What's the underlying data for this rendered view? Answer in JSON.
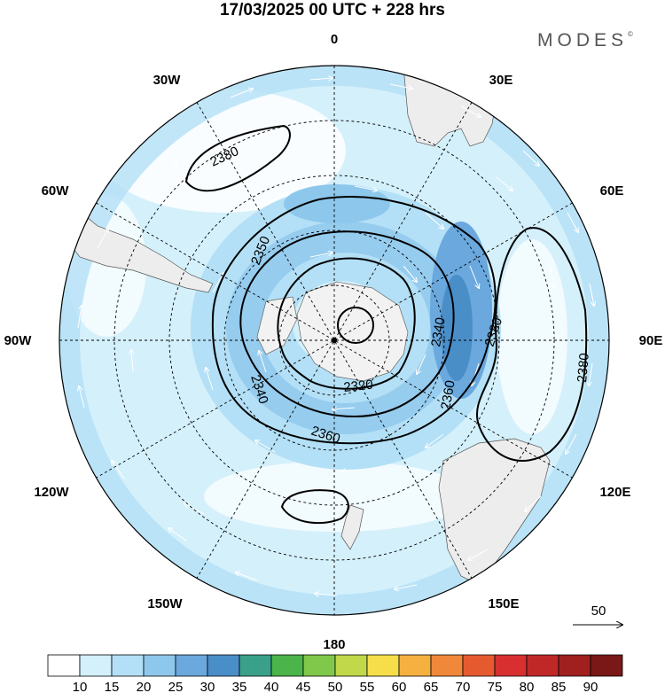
{
  "title": "17/03/2025  00 UTC  + 228 hrs",
  "brand": "MODES",
  "brand_mark": "©",
  "longitude_labels": {
    "lon_0": "0",
    "lon_30e": "30E",
    "lon_60e": "60E",
    "lon_90e": "90E",
    "lon_120e": "120E",
    "lon_150e": "150E",
    "lon_180": "180",
    "lon_150w": "150W",
    "lon_120w": "120W",
    "lon_90w": "90W",
    "lon_60w": "60W",
    "lon_30w": "30W"
  },
  "contour_labels": {
    "c2380_a": "2380",
    "c2350": "2350",
    "c2340_a": "2340",
    "c2340_b": "2340",
    "c2320": "2320",
    "c2360_a": "2360",
    "c2360_b": "2360",
    "c2380_b": "2380",
    "c2380_c": "2380"
  },
  "reference_vector": "50",
  "colorbar": {
    "labels": [
      "10",
      "15",
      "20",
      "25",
      "30",
      "35",
      "40",
      "45",
      "50",
      "55",
      "60",
      "65",
      "70",
      "75",
      "80",
      "85",
      "90"
    ],
    "colors": [
      "#ffffff",
      "#d4f0fb",
      "#b3e0f6",
      "#8ec7ec",
      "#6aa8dd",
      "#4a8ec8",
      "#3aa08a",
      "#4bb44a",
      "#80c84a",
      "#c0d84a",
      "#f5de4a",
      "#f5b040",
      "#f0883a",
      "#e65a30",
      "#d83030",
      "#c02828",
      "#a02020",
      "#7a1818"
    ]
  }
}
